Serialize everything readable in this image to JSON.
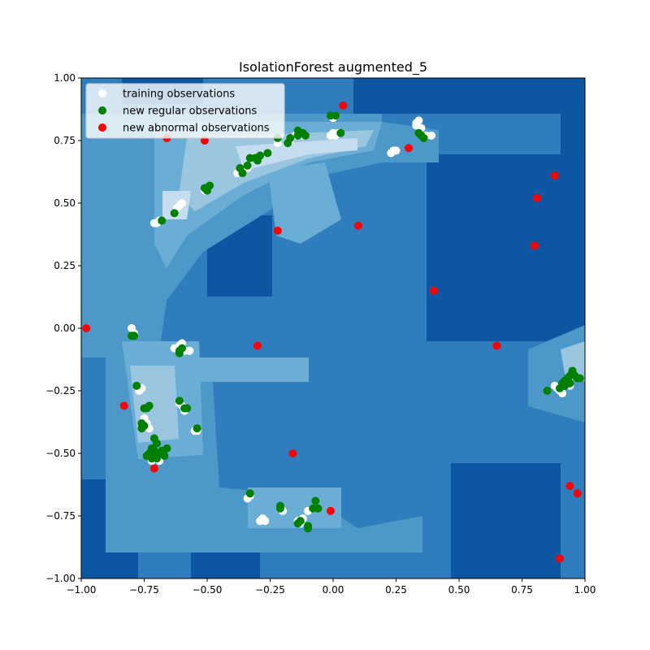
{
  "chart_data": {
    "type": "scatter",
    "title": "IsolationForest augmented_5",
    "xlabel": "",
    "ylabel": "",
    "xlim": [
      -1.0,
      1.0
    ],
    "ylim": [
      -1.0,
      1.0
    ],
    "xticks": [
      "−1.00",
      "−0.75",
      "−0.50",
      "−0.25",
      "0.00",
      "0.25",
      "0.50",
      "0.75",
      "1.00"
    ],
    "yticks": [
      "−1.00",
      "−0.75",
      "−0.50",
      "−0.25",
      "0.00",
      "0.25",
      "0.50",
      "0.75",
      "1.00"
    ],
    "grid": false,
    "legend_position": "top-left",
    "background": "contour",
    "contour_colors": [
      "#0d57a2",
      "#2f7dbd",
      "#4c99c9",
      "#6aaed6",
      "#9bc6e0",
      "#c6dcef"
    ],
    "series": [
      {
        "name": "training observations",
        "color": "#ffffff",
        "points": [
          [
            0.0,
            0.78
          ],
          [
            0.01,
            0.77
          ],
          [
            0.02,
            0.78
          ],
          [
            -0.01,
            0.77
          ],
          [
            0.0,
            0.84
          ],
          [
            0.01,
            0.85
          ],
          [
            -0.14,
            0.79
          ],
          [
            -0.13,
            0.78
          ],
          [
            -0.15,
            0.77
          ],
          [
            -0.12,
            0.77
          ],
          [
            -0.17,
            0.75
          ],
          [
            -0.18,
            0.74
          ],
          [
            -0.22,
            0.76
          ],
          [
            -0.22,
            0.74
          ],
          [
            -0.11,
            0.77
          ],
          [
            -0.3,
            0.67
          ],
          [
            -0.32,
            0.68
          ],
          [
            -0.34,
            0.64
          ],
          [
            -0.36,
            0.63
          ],
          [
            -0.38,
            0.62
          ],
          [
            -0.37,
            0.64
          ],
          [
            -0.5,
            0.56
          ],
          [
            -0.51,
            0.55
          ],
          [
            -0.6,
            0.5
          ],
          [
            -0.61,
            0.49
          ],
          [
            -0.62,
            0.48
          ],
          [
            -0.63,
            0.46
          ],
          [
            -0.7,
            0.42
          ],
          [
            -0.71,
            0.42
          ],
          [
            -0.69,
            0.43
          ],
          [
            0.33,
            0.82
          ],
          [
            0.34,
            0.83
          ],
          [
            0.33,
            0.81
          ],
          [
            0.35,
            0.8
          ],
          [
            0.37,
            0.77
          ],
          [
            0.39,
            0.77
          ],
          [
            0.24,
            0.71
          ],
          [
            0.25,
            0.71
          ],
          [
            0.23,
            0.7
          ],
          [
            0.35,
            0.77
          ],
          [
            -0.8,
            0.0
          ],
          [
            -0.79,
            -0.02
          ],
          [
            -0.63,
            -0.08
          ],
          [
            -0.61,
            -0.07
          ],
          [
            -0.6,
            -0.06
          ],
          [
            -0.59,
            -0.09
          ],
          [
            -0.57,
            -0.09
          ],
          [
            -0.77,
            -0.25
          ],
          [
            -0.76,
            -0.24
          ],
          [
            -0.75,
            -0.36
          ],
          [
            -0.74,
            -0.38
          ],
          [
            -0.73,
            -0.4
          ],
          [
            -0.61,
            -0.3
          ],
          [
            -0.6,
            -0.31
          ],
          [
            -0.59,
            -0.33
          ],
          [
            -0.55,
            -0.41
          ],
          [
            -0.54,
            -0.41
          ],
          [
            -0.72,
            -0.49
          ],
          [
            -0.71,
            -0.51
          ],
          [
            -0.7,
            -0.52
          ],
          [
            -0.69,
            -0.53
          ],
          [
            -0.72,
            -0.53
          ],
          [
            -0.33,
            -0.67
          ],
          [
            -0.34,
            -0.68
          ],
          [
            -0.29,
            -0.77
          ],
          [
            -0.28,
            -0.76
          ],
          [
            -0.27,
            -0.77
          ],
          [
            -0.21,
            -0.72
          ],
          [
            -0.2,
            -0.73
          ],
          [
            -0.14,
            -0.77
          ],
          [
            -0.13,
            -0.78
          ],
          [
            -0.12,
            -0.76
          ],
          [
            -0.1,
            -0.73
          ],
          [
            -0.08,
            -0.72
          ],
          [
            0.89,
            -0.24
          ],
          [
            0.88,
            -0.23
          ],
          [
            0.9,
            -0.25
          ],
          [
            0.92,
            -0.22
          ],
          [
            0.93,
            -0.2
          ],
          [
            0.95,
            -0.19
          ],
          [
            0.97,
            -0.2
          ],
          [
            0.91,
            -0.26
          ],
          [
            0.94,
            -0.23
          ]
        ]
      },
      {
        "name": "new regular observations",
        "color": "#008000",
        "points": [
          [
            -0.01,
            0.85
          ],
          [
            0.01,
            0.85
          ],
          [
            0.03,
            0.78
          ],
          [
            -0.14,
            0.79
          ],
          [
            -0.13,
            0.78
          ],
          [
            -0.14,
            0.77
          ],
          [
            -0.12,
            0.78
          ],
          [
            -0.11,
            0.77
          ],
          [
            -0.17,
            0.76
          ],
          [
            -0.18,
            0.74
          ],
          [
            -0.22,
            0.76
          ],
          [
            -0.26,
            0.7
          ],
          [
            -0.29,
            0.69
          ],
          [
            -0.3,
            0.67
          ],
          [
            -0.31,
            0.68
          ],
          [
            -0.33,
            0.68
          ],
          [
            -0.34,
            0.65
          ],
          [
            -0.36,
            0.62
          ],
          [
            -0.37,
            0.64
          ],
          [
            -0.51,
            0.56
          ],
          [
            -0.49,
            0.57
          ],
          [
            -0.5,
            0.55
          ],
          [
            -0.63,
            0.46
          ],
          [
            -0.68,
            0.43
          ],
          [
            0.34,
            0.78
          ],
          [
            0.35,
            0.77
          ],
          [
            0.36,
            0.76
          ],
          [
            -0.8,
            -0.03
          ],
          [
            -0.79,
            -0.03
          ],
          [
            -0.61,
            -0.09
          ],
          [
            -0.6,
            -0.08
          ],
          [
            -0.61,
            -0.1
          ],
          [
            -0.78,
            -0.23
          ],
          [
            -0.75,
            -0.32
          ],
          [
            -0.74,
            -0.32
          ],
          [
            -0.73,
            -0.31
          ],
          [
            -0.76,
            -0.38
          ],
          [
            -0.75,
            -0.39
          ],
          [
            -0.76,
            -0.4
          ],
          [
            -0.61,
            -0.29
          ],
          [
            -0.59,
            -0.32
          ],
          [
            -0.58,
            -0.32
          ],
          [
            -0.54,
            -0.4
          ],
          [
            -0.71,
            -0.44
          ],
          [
            -0.7,
            -0.46
          ],
          [
            -0.72,
            -0.48
          ],
          [
            -0.71,
            -0.49
          ],
          [
            -0.7,
            -0.5
          ],
          [
            -0.69,
            -0.5
          ],
          [
            -0.68,
            -0.49
          ],
          [
            -0.66,
            -0.48
          ],
          [
            -0.73,
            -0.5
          ],
          [
            -0.74,
            -0.51
          ],
          [
            -0.72,
            -0.52
          ],
          [
            -0.71,
            -0.51
          ],
          [
            -0.7,
            -0.52
          ],
          [
            -0.67,
            -0.51
          ],
          [
            -0.33,
            -0.66
          ],
          [
            -0.21,
            -0.71
          ],
          [
            -0.21,
            -0.72
          ],
          [
            -0.14,
            -0.78
          ],
          [
            -0.13,
            -0.77
          ],
          [
            -0.1,
            -0.8
          ],
          [
            -0.1,
            -0.79
          ],
          [
            -0.08,
            -0.72
          ],
          [
            -0.07,
            -0.69
          ],
          [
            -0.06,
            -0.72
          ],
          [
            0.85,
            -0.25
          ],
          [
            0.9,
            -0.24
          ],
          [
            0.91,
            -0.22
          ],
          [
            0.92,
            -0.21
          ],
          [
            0.93,
            -0.2
          ],
          [
            0.94,
            -0.19
          ],
          [
            0.95,
            -0.17
          ],
          [
            0.96,
            -0.19
          ],
          [
            0.97,
            -0.2
          ],
          [
            0.98,
            -0.2
          ],
          [
            0.92,
            -0.23
          ],
          [
            0.94,
            -0.22
          ]
        ]
      },
      {
        "name": "new abnormal observations",
        "color": "#ff0000",
        "points": [
          [
            0.04,
            0.89
          ],
          [
            -0.66,
            0.76
          ],
          [
            -0.51,
            0.75
          ],
          [
            0.3,
            0.72
          ],
          [
            0.88,
            0.61
          ],
          [
            0.81,
            0.52
          ],
          [
            -0.22,
            0.39
          ],
          [
            0.1,
            0.41
          ],
          [
            0.8,
            0.33
          ],
          [
            0.4,
            0.15
          ],
          [
            -0.98,
            0.0
          ],
          [
            -0.3,
            -0.07
          ],
          [
            0.65,
            -0.07
          ],
          [
            -0.83,
            -0.31
          ],
          [
            -0.16,
            -0.5
          ],
          [
            -0.71,
            -0.56
          ],
          [
            0.94,
            -0.63
          ],
          [
            0.97,
            -0.66
          ],
          [
            -0.01,
            -0.73
          ],
          [
            0.9,
            -0.92
          ]
        ]
      }
    ]
  }
}
